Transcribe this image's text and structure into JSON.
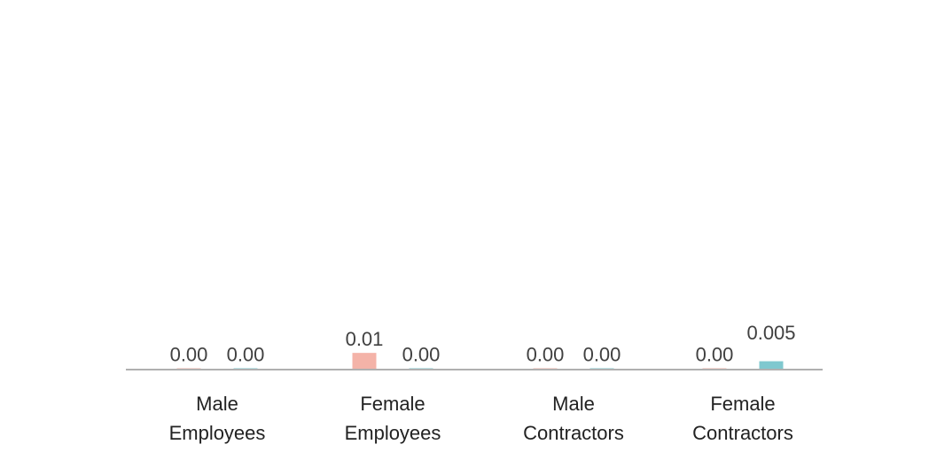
{
  "chart_data": {
    "type": "bar",
    "categories": [
      [
        "Male",
        "Employees"
      ],
      [
        "Female",
        "Employees"
      ],
      [
        "Male",
        "Contractors"
      ],
      [
        "Female",
        "Contractors"
      ]
    ],
    "series": [
      {
        "values": [
          0.0,
          0.01,
          0.0,
          0.0
        ],
        "labels": [
          "0.00",
          "0.01",
          "0.00",
          "0.00"
        ],
        "color": "#f4b3a8"
      },
      {
        "values": [
          0.0,
          0.0,
          0.0,
          0.005
        ],
        "labels": [
          "0.00",
          "0.00",
          "0.00",
          "0.005"
        ],
        "color": "#7fc8cf"
      }
    ],
    "ylim": [
      0,
      0.2
    ],
    "grid": false,
    "legend": "none",
    "axis_color": "#b0b0b0"
  }
}
